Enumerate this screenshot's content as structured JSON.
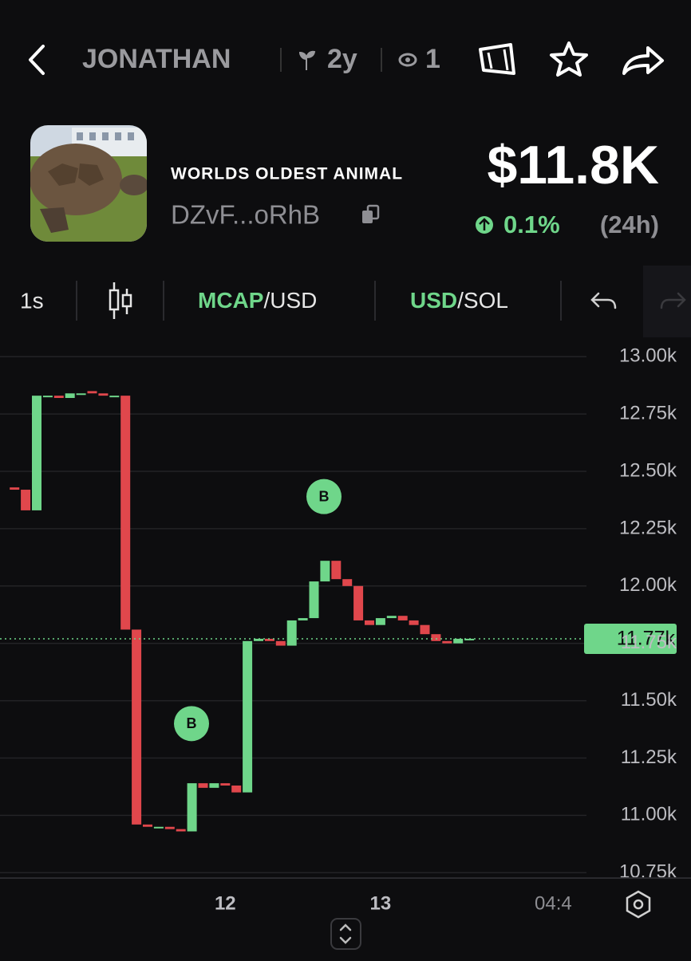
{
  "header": {
    "title": "JONATHAN",
    "age": "2y",
    "watchers": "1"
  },
  "token": {
    "name": "WORLDS OLDEST ANIMAL",
    "address": "DZvF...oRhB",
    "market_cap": "$11.8K",
    "change": "0.1%",
    "change_period": "(24h)"
  },
  "toolbar": {
    "interval": "1s",
    "pair1": {
      "base": "MCAP",
      "quote": "/USD"
    },
    "pair2": {
      "base": "USD",
      "quote": "/SOL"
    }
  },
  "chart_data": {
    "type": "candlestick",
    "categories": [
      null,
      null,
      null,
      null,
      null,
      null,
      null,
      null,
      null,
      null,
      null,
      null,
      null,
      null,
      null,
      null,
      null,
      null,
      null,
      "12",
      null,
      null,
      null,
      null,
      null,
      null,
      null,
      null,
      null,
      null,
      null,
      null,
      null,
      "13",
      null,
      null,
      null,
      null,
      null,
      null,
      null,
      null
    ],
    "open": [
      12.43,
      12.42,
      12.33,
      12.83,
      12.83,
      12.82,
      12.84,
      12.85,
      12.84,
      12.83,
      12.83,
      11.81,
      10.96,
      10.95,
      10.95,
      10.94,
      10.93,
      11.14,
      11.12,
      11.14,
      11.13,
      11.1,
      11.76,
      11.77,
      11.76,
      11.74,
      11.85,
      11.86,
      12.02,
      12.11,
      12.03,
      12.0,
      11.85,
      11.83,
      11.86,
      11.87,
      11.85,
      11.83,
      11.79,
      11.76,
      11.75,
      11.77
    ],
    "close": [
      12.42,
      12.33,
      12.83,
      12.83,
      12.82,
      12.84,
      12.84,
      12.84,
      12.83,
      12.83,
      11.81,
      10.96,
      10.95,
      10.95,
      10.94,
      10.93,
      11.14,
      11.12,
      11.14,
      11.13,
      11.1,
      11.76,
      11.77,
      11.76,
      11.74,
      11.85,
      11.86,
      12.02,
      12.11,
      12.03,
      12.0,
      11.85,
      11.83,
      11.86,
      11.87,
      11.85,
      11.83,
      11.79,
      11.76,
      11.75,
      11.77,
      11.77
    ],
    "up_color": "#6fd68a",
    "down_color": "#e0474c",
    "ylim": [
      10.73,
      13.06
    ],
    "yticks": [
      {
        "value": 13,
        "label": "13.00k"
      },
      {
        "value": 12.75,
        "label": "12.75k"
      },
      {
        "value": 12.5,
        "label": "12.50k"
      },
      {
        "value": 12.25,
        "label": "12.25k"
      },
      {
        "value": 12,
        "label": "12.00k"
      },
      {
        "value": 11.75,
        "label": "11.75k"
      },
      {
        "value": 11.5,
        "label": "11.50k"
      },
      {
        "value": 11.25,
        "label": "11.25k"
      },
      {
        "value": 11,
        "label": "11.00k"
      },
      {
        "value": 10.75,
        "label": "10.75k"
      }
    ],
    "grid": true,
    "last_price": {
      "value": 11.77,
      "label": "11.77k"
    },
    "annotations": [
      {
        "text": "B",
        "value": 11.4
      },
      {
        "text": "B",
        "value": 12.39
      }
    ],
    "x_extra_label": "04:4"
  }
}
